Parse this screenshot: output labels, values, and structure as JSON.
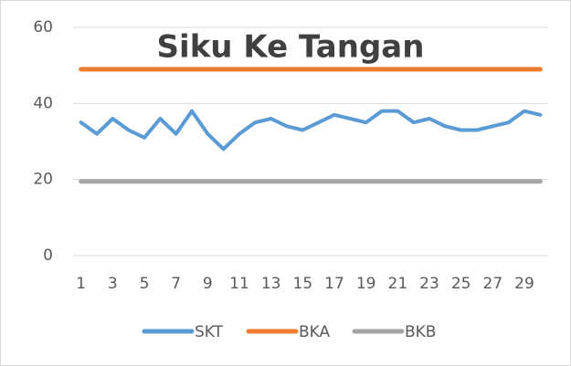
{
  "chart_data": {
    "type": "line",
    "title": "Siku Ke Tangan",
    "categories": [
      "1",
      null,
      "3",
      null,
      "5",
      null,
      "7",
      null,
      "9",
      null,
      "11",
      null,
      "13",
      null,
      "15",
      null,
      "17",
      null,
      "19",
      null,
      "21",
      null,
      "23",
      null,
      "25",
      null,
      "27",
      null,
      "29",
      null
    ],
    "series": [
      {
        "name": "SKT",
        "color": "#5b9bd5",
        "values": [
          35,
          32,
          36,
          33,
          31,
          36,
          32,
          38,
          32,
          28,
          32,
          35,
          36,
          34,
          33,
          35,
          37,
          36,
          35,
          38,
          38,
          35,
          36,
          34,
          33,
          33,
          34,
          35,
          38,
          37
        ]
      },
      {
        "name": "BKA",
        "color": "#ed7d31",
        "values": [
          49,
          49,
          49,
          49,
          49,
          49,
          49,
          49,
          49,
          49,
          49,
          49,
          49,
          49,
          49,
          49,
          49,
          49,
          49,
          49,
          49,
          49,
          49,
          49,
          49,
          49,
          49,
          49,
          49,
          49
        ]
      },
      {
        "name": "BKB",
        "color": "#a5a5a5",
        "values": [
          19.5,
          19.5,
          19.5,
          19.5,
          19.5,
          19.5,
          19.5,
          19.5,
          19.5,
          19.5,
          19.5,
          19.5,
          19.5,
          19.5,
          19.5,
          19.5,
          19.5,
          19.5,
          19.5,
          19.5,
          19.5,
          19.5,
          19.5,
          19.5,
          19.5,
          19.5,
          19.5,
          19.5,
          19.5,
          19.5
        ]
      }
    ],
    "ylim": [
      0,
      60
    ],
    "yticks": [
      0,
      20,
      40,
      60
    ],
    "grid": true,
    "legend": "bottom"
  }
}
